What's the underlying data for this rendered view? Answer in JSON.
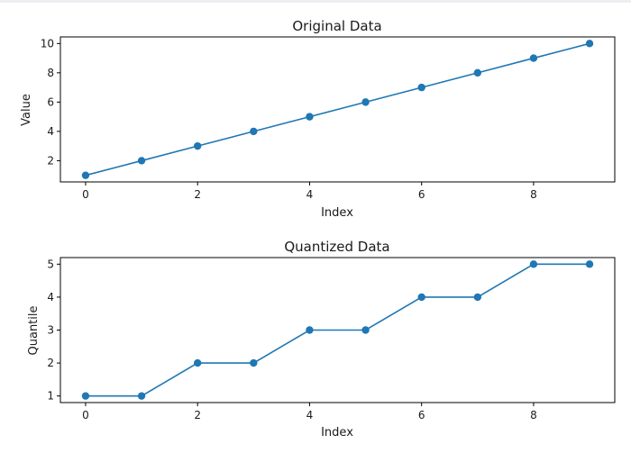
{
  "chart_data": [
    {
      "type": "line",
      "title": "Original Data",
      "xlabel": "Index",
      "ylabel": "Value",
      "x": [
        0,
        1,
        2,
        3,
        4,
        5,
        6,
        7,
        8,
        9
      ],
      "values": [
        1,
        2,
        3,
        4,
        5,
        6,
        7,
        8,
        9,
        10
      ],
      "xlim": [
        -0.45,
        9.45
      ],
      "ylim": [
        0.55,
        10.45
      ],
      "xticks": [
        0,
        2,
        4,
        6,
        8
      ],
      "yticks": [
        2,
        4,
        6,
        8,
        10
      ],
      "marker": "circle",
      "grid": false,
      "color": "#1f77b4"
    },
    {
      "type": "line",
      "title": "Quantized Data",
      "xlabel": "Index",
      "ylabel": "Quantile",
      "x": [
        0,
        1,
        2,
        3,
        4,
        5,
        6,
        7,
        8,
        9
      ],
      "values": [
        1,
        1,
        2,
        2,
        3,
        3,
        4,
        4,
        5,
        5
      ],
      "xlim": [
        -0.45,
        9.45
      ],
      "ylim": [
        0.8,
        5.2
      ],
      "xticks": [
        0,
        2,
        4,
        6,
        8
      ],
      "yticks": [
        1,
        2,
        3,
        4,
        5
      ],
      "marker": "circle",
      "grid": false,
      "color": "#1f77b4"
    }
  ]
}
